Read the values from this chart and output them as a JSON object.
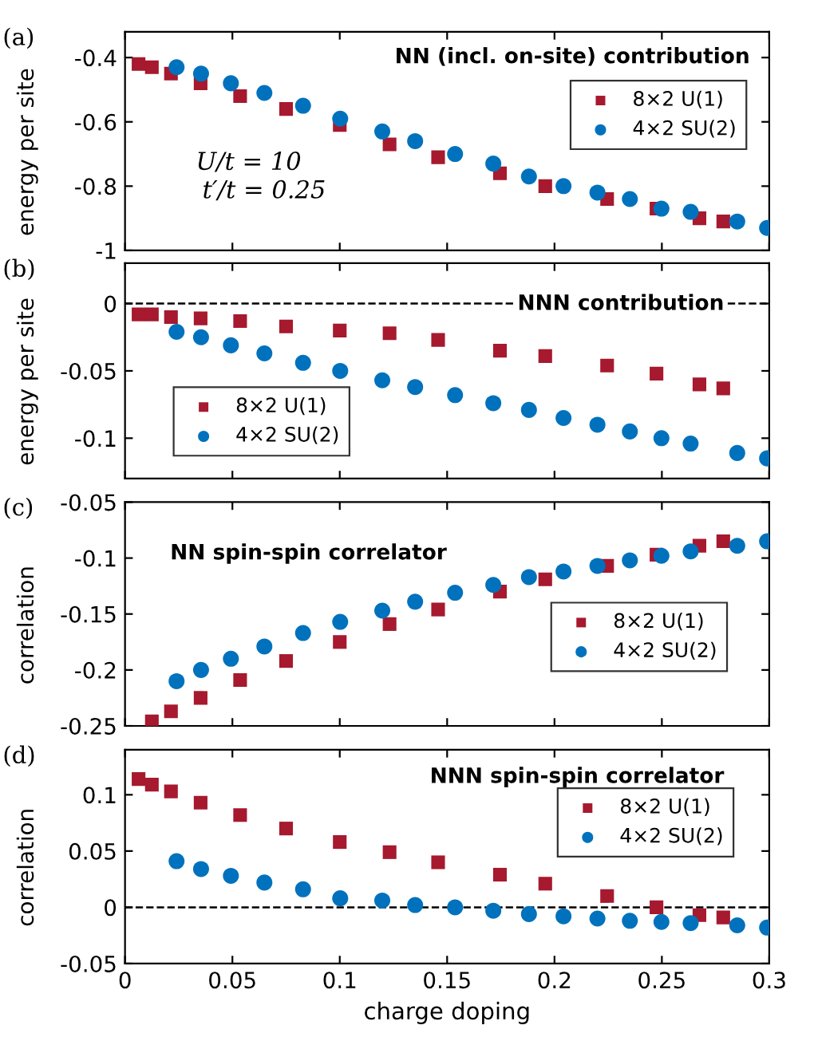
{
  "chart_data": [
    {
      "type": "scatter",
      "ylabel": "energy per site",
      "annotations": [
        "(a)",
        "NN (incl. on-site) contribution",
        "U/t = 10",
        "t′/t = 0.25"
      ],
      "xlim": [
        0,
        0.3
      ],
      "xticks": [
        0,
        0.05,
        0.1,
        0.15,
        0.2,
        0.25,
        0.3
      ],
      "ylim": [
        -1,
        -0.32
      ],
      "yticks": [
        -1,
        -0.8,
        -0.6,
        -0.4
      ],
      "tick_labels": "y",
      "legend": "right",
      "series": [
        {
          "name": "8×2 U(1)",
          "color": "#a6192e",
          "marker": "square",
          "x": [
            0.0063,
            0.0125,
            0.0214,
            0.0352,
            0.0536,
            0.075,
            0.1,
            0.1232,
            0.1458,
            0.1746,
            0.1957,
            0.2245,
            0.2475,
            0.2675,
            0.2786
          ],
          "values": [
            -0.42,
            -0.43,
            -0.45,
            -0.48,
            -0.52,
            -0.56,
            -0.61,
            -0.67,
            -0.71,
            -0.76,
            -0.8,
            -0.84,
            -0.87,
            -0.9,
            -0.91
          ]
        },
        {
          "name": "4×2 SU(2)",
          "color": "#0072bd",
          "marker": "circle",
          "x": [
            0.024,
            0.0354,
            0.0493,
            0.0649,
            0.0829,
            0.1002,
            0.1198,
            0.1351,
            0.1537,
            0.1715,
            0.1881,
            0.2042,
            0.22,
            0.2351,
            0.2498,
            0.2634,
            0.2851,
            0.299
          ],
          "values": [
            -0.43,
            -0.45,
            -0.48,
            -0.51,
            -0.55,
            -0.59,
            -0.63,
            -0.66,
            -0.7,
            -0.73,
            -0.77,
            -0.8,
            -0.82,
            -0.84,
            -0.87,
            -0.88,
            -0.91,
            -0.93
          ]
        }
      ]
    },
    {
      "type": "scatter",
      "ylabel": "energy per site",
      "annotations": [
        "(b)",
        "NNN contribution"
      ],
      "xlim": [
        0,
        0.3
      ],
      "xticks": [
        0,
        0.05,
        0.1,
        0.15,
        0.2,
        0.25,
        0.3
      ],
      "ylim": [
        -0.13,
        0.03
      ],
      "yticks": [
        -0.1,
        -0.05,
        0
      ],
      "tick_labels": "y",
      "legend": "bottom left",
      "ref_lines": [
        {
          "axis": "y",
          "value": 0,
          "line_style": "dashed",
          "color": "#000000"
        }
      ],
      "series": [
        {
          "name": "8×2 U(1)",
          "color": "#a6192e",
          "marker": "square",
          "x": [
            0.0063,
            0.0125,
            0.0214,
            0.0352,
            0.0536,
            0.075,
            0.1,
            0.1232,
            0.1458,
            0.1746,
            0.1957,
            0.2245,
            0.2475,
            0.2675,
            0.2786
          ],
          "values": [
            -0.008,
            -0.008,
            -0.01,
            -0.011,
            -0.013,
            -0.017,
            -0.02,
            -0.022,
            -0.027,
            -0.035,
            -0.039,
            -0.046,
            -0.052,
            -0.06,
            -0.063
          ]
        },
        {
          "name": "4×2 SU(2)",
          "color": "#0072bd",
          "marker": "circle",
          "x": [
            0.024,
            0.0354,
            0.0493,
            0.0649,
            0.0829,
            0.1002,
            0.1198,
            0.1351,
            0.1537,
            0.1715,
            0.1881,
            0.2042,
            0.22,
            0.2351,
            0.2498,
            0.2634,
            0.2851,
            0.299
          ],
          "values": [
            -0.021,
            -0.025,
            -0.031,
            -0.037,
            -0.044,
            -0.05,
            -0.057,
            -0.062,
            -0.068,
            -0.074,
            -0.079,
            -0.085,
            -0.09,
            -0.095,
            -0.1,
            -0.104,
            -0.111,
            -0.115
          ]
        }
      ]
    },
    {
      "type": "scatter",
      "ylabel": "correlation",
      "annotations": [
        "(c)",
        "NN spin-spin correlator"
      ],
      "xlim": [
        0,
        0.3
      ],
      "xticks": [
        0,
        0.05,
        0.1,
        0.15,
        0.2,
        0.25,
        0.3
      ],
      "ylim": [
        -0.25,
        -0.05
      ],
      "yticks": [
        -0.25,
        -0.2,
        -0.15,
        -0.1,
        -0.05
      ],
      "tick_labels": "y",
      "legend": "bottom right",
      "series": [
        {
          "name": "8×2 U(1)",
          "color": "#a6192e",
          "marker": "square",
          "x": [
            0.0125,
            0.0214,
            0.0352,
            0.0536,
            0.075,
            0.1,
            0.1232,
            0.1458,
            0.1746,
            0.1957,
            0.2245,
            0.2475,
            0.2675,
            0.2786
          ],
          "values": [
            -0.246,
            -0.237,
            -0.225,
            -0.209,
            -0.192,
            -0.175,
            -0.159,
            -0.146,
            -0.13,
            -0.119,
            -0.107,
            -0.097,
            -0.089,
            -0.085
          ]
        },
        {
          "name": "4×2 SU(2)",
          "color": "#0072bd",
          "marker": "circle",
          "x": [
            0.024,
            0.0354,
            0.0493,
            0.0649,
            0.0829,
            0.1002,
            0.1198,
            0.1351,
            0.1537,
            0.1715,
            0.1881,
            0.2042,
            0.22,
            0.2351,
            0.2498,
            0.2634,
            0.2851,
            0.299
          ],
          "values": [
            -0.21,
            -0.2,
            -0.19,
            -0.179,
            -0.167,
            -0.157,
            -0.147,
            -0.139,
            -0.131,
            -0.124,
            -0.117,
            -0.112,
            -0.107,
            -0.102,
            -0.098,
            -0.094,
            -0.089,
            -0.085
          ]
        }
      ]
    },
    {
      "type": "scatter",
      "ylabel": "correlation",
      "xlabel": "charge doping",
      "annotations": [
        "(d)",
        "NNN spin-spin correlator"
      ],
      "xlim": [
        0,
        0.3
      ],
      "xticks": [
        0,
        0.05,
        0.1,
        0.15,
        0.2,
        0.25,
        0.3
      ],
      "ylim": [
        -0.05,
        0.14
      ],
      "yticks": [
        -0.05,
        0,
        0.05,
        0.1
      ],
      "legend": "right",
      "ref_lines": [
        {
          "axis": "y",
          "value": 0,
          "line_style": "dashed",
          "color": "#000000"
        }
      ],
      "series": [
        {
          "name": "8×2 U(1)",
          "color": "#a6192e",
          "marker": "square",
          "x": [
            0.0063,
            0.0125,
            0.0214,
            0.0352,
            0.0536,
            0.075,
            0.1,
            0.1232,
            0.1458,
            0.1746,
            0.1957,
            0.2245,
            0.2475,
            0.2675,
            0.2786
          ],
          "values": [
            0.114,
            0.109,
            0.103,
            0.093,
            0.082,
            0.07,
            0.058,
            0.049,
            0.04,
            0.029,
            0.021,
            0.01,
            0.0,
            -0.007,
            -0.009
          ]
        },
        {
          "name": "4×2 SU(2)",
          "color": "#0072bd",
          "marker": "circle",
          "x": [
            0.024,
            0.0354,
            0.0493,
            0.0649,
            0.0829,
            0.1002,
            0.1198,
            0.1351,
            0.1537,
            0.1715,
            0.1881,
            0.2042,
            0.22,
            0.2351,
            0.2498,
            0.2634,
            0.2851,
            0.299
          ],
          "values": [
            0.041,
            0.034,
            0.028,
            0.022,
            0.016,
            0.008,
            0.006,
            0.002,
            0.0,
            -0.003,
            -0.006,
            -0.008,
            -0.01,
            -0.012,
            -0.013,
            -0.014,
            -0.016,
            -0.018
          ]
        }
      ]
    }
  ]
}
